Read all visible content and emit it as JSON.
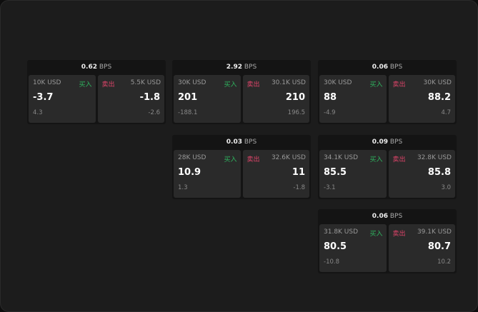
{
  "unit": "BPS",
  "buy_label": "买入",
  "sell_label": "卖出",
  "panels": [
    {
      "spread": "0.62",
      "bid": {
        "size": "10K USD",
        "price": "-3.7",
        "change": "4.3"
      },
      "ask": {
        "size": "5.5K USD",
        "price": "-1.8",
        "change": "-2.6"
      }
    },
    {
      "spread": "2.92",
      "bid": {
        "size": "30K USD",
        "price": "201",
        "change": "-188.1"
      },
      "ask": {
        "size": "30.1K USD",
        "price": "210",
        "change": "196.5"
      }
    },
    {
      "spread": "0.06",
      "bid": {
        "size": "30K USD",
        "price": "88",
        "change": "-4.9"
      },
      "ask": {
        "size": "30K USD",
        "price": "88.2",
        "change": "4.7"
      }
    },
    {
      "spread": "0.03",
      "bid": {
        "size": "28K USD",
        "price": "10.9",
        "change": "1.3"
      },
      "ask": {
        "size": "32.6K USD",
        "price": "11",
        "change": "-1.8"
      }
    },
    {
      "spread": "0.09",
      "bid": {
        "size": "34.1K USD",
        "price": "85.5",
        "change": "-3.1"
      },
      "ask": {
        "size": "32.8K USD",
        "price": "85.8",
        "change": "3.0"
      }
    },
    {
      "spread": "0.06",
      "bid": {
        "size": "31.8K USD",
        "price": "80.5",
        "change": "-10.8"
      },
      "ask": {
        "size": "39.1K USD",
        "price": "80.7",
        "change": "10.2"
      }
    }
  ]
}
